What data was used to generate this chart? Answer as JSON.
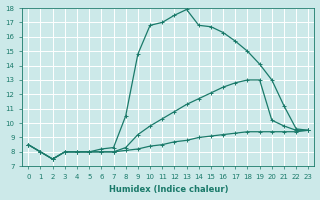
{
  "xlabel": "Humidex (Indice chaleur)",
  "xlim": [
    -0.5,
    23.5
  ],
  "ylim": [
    7,
    18
  ],
  "yticks": [
    7,
    8,
    9,
    10,
    11,
    12,
    13,
    14,
    15,
    16,
    17,
    18
  ],
  "xticks": [
    0,
    1,
    2,
    3,
    4,
    5,
    6,
    7,
    8,
    9,
    10,
    11,
    12,
    13,
    14,
    15,
    16,
    17,
    18,
    19,
    20,
    21,
    22,
    23
  ],
  "bg_color": "#cce9e9",
  "grid_color": "#ffffff",
  "line_color": "#1a7a6a",
  "lines": [
    {
      "x": [
        0,
        1,
        2,
        3,
        4,
        5,
        6,
        7,
        8,
        9,
        10,
        11,
        12,
        13,
        14,
        15,
        16,
        17,
        18,
        19,
        20,
        21,
        22,
        23
      ],
      "y": [
        8.5,
        8.0,
        7.5,
        8.0,
        8.0,
        8.0,
        8.2,
        8.3,
        10.5,
        14.8,
        16.8,
        17.0,
        17.5,
        17.9,
        16.8,
        16.7,
        16.3,
        15.7,
        15.0,
        14.1,
        13.0,
        11.2,
        9.6,
        9.5
      ]
    },
    {
      "x": [
        0,
        1,
        2,
        3,
        4,
        5,
        6,
        7,
        8,
        9,
        10,
        11,
        12,
        13,
        14,
        15,
        16,
        17,
        18,
        19,
        20,
        21,
        22,
        23
      ],
      "y": [
        8.5,
        8.0,
        7.5,
        8.0,
        8.0,
        8.0,
        8.0,
        8.0,
        8.3,
        9.2,
        9.8,
        10.3,
        10.8,
        11.3,
        11.7,
        12.1,
        12.5,
        12.8,
        13.0,
        13.0,
        10.2,
        9.8,
        9.5,
        9.5
      ]
    },
    {
      "x": [
        0,
        1,
        2,
        3,
        4,
        5,
        6,
        7,
        8,
        9,
        10,
        11,
        12,
        13,
        14,
        15,
        16,
        17,
        18,
        19,
        20,
        21,
        22,
        23
      ],
      "y": [
        8.5,
        8.0,
        7.5,
        8.0,
        8.0,
        8.0,
        8.0,
        8.0,
        8.1,
        8.2,
        8.4,
        8.5,
        8.7,
        8.8,
        9.0,
        9.1,
        9.2,
        9.3,
        9.4,
        9.4,
        9.4,
        9.4,
        9.4,
        9.5
      ]
    }
  ],
  "marker": "+",
  "markersize": 3,
  "linewidth": 0.9,
  "tick_fontsize": 5,
  "xlabel_fontsize": 6
}
